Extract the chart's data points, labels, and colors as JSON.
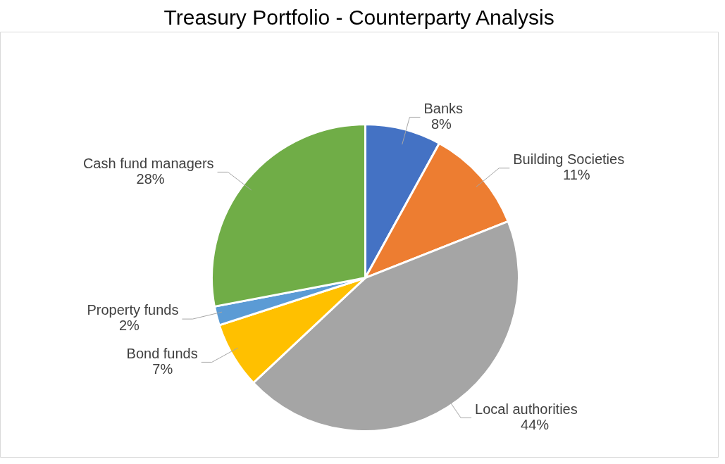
{
  "chart_data": {
    "type": "pie",
    "title": "Treasury Portfolio - Counterparty Analysis",
    "categories": [
      "Banks",
      "Building Societies",
      "Local authorities",
      "Bond funds",
      "Property funds",
      "Cash fund managers"
    ],
    "values": [
      8,
      11,
      44,
      7,
      2,
      28
    ],
    "value_labels": [
      "8%",
      "11%",
      "44%",
      "7%",
      "2%",
      "28%"
    ],
    "colors": [
      "#4472c4",
      "#ed7d31",
      "#a5a5a5",
      "#ffc000",
      "#5b9bd5",
      "#70ad47"
    ],
    "legend": false
  }
}
